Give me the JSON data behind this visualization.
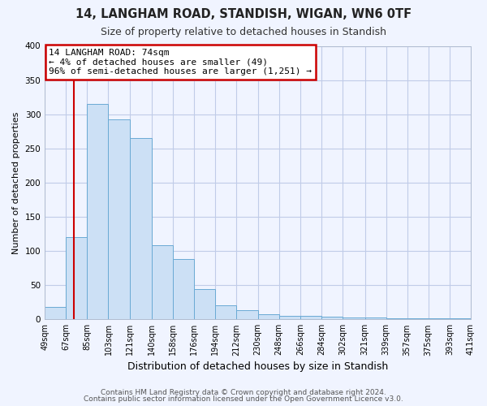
{
  "title": "14, LANGHAM ROAD, STANDISH, WIGAN, WN6 0TF",
  "subtitle": "Size of property relative to detached houses in Standish",
  "xlabel": "Distribution of detached houses by size in Standish",
  "ylabel": "Number of detached properties",
  "bar_labels": [
    "49sqm",
    "67sqm",
    "85sqm",
    "103sqm",
    "121sqm",
    "140sqm",
    "158sqm",
    "176sqm",
    "194sqm",
    "212sqm",
    "230sqm",
    "248sqm",
    "266sqm",
    "284sqm",
    "302sqm",
    "321sqm",
    "339sqm",
    "357sqm",
    "375sqm",
    "393sqm",
    "411sqm"
  ],
  "bar_values": [
    18,
    120,
    315,
    293,
    265,
    109,
    88,
    44,
    20,
    14,
    7,
    5,
    5,
    4,
    3,
    3,
    2,
    2,
    2,
    1,
    3
  ],
  "bar_edges": [
    49,
    67,
    85,
    103,
    121,
    140,
    158,
    176,
    194,
    212,
    230,
    248,
    266,
    284,
    302,
    321,
    339,
    357,
    375,
    393,
    411
  ],
  "bar_color": "#cce0f5",
  "bar_edge_color": "#6aaad4",
  "property_line_x": 74,
  "property_line_color": "#cc0000",
  "annotation_title": "14 LANGHAM ROAD: 74sqm",
  "annotation_line1": "← 4% of detached houses are smaller (49)",
  "annotation_line2": "96% of semi-detached houses are larger (1,251) →",
  "annotation_box_color": "#cc0000",
  "ylim": [
    0,
    400
  ],
  "yticks": [
    0,
    50,
    100,
    150,
    200,
    250,
    300,
    350,
    400
  ],
  "footer1": "Contains HM Land Registry data © Crown copyright and database right 2024.",
  "footer2": "Contains public sector information licensed under the Open Government Licence v3.0.",
  "bg_color": "#f0f4ff",
  "grid_color": "#c0cce8"
}
